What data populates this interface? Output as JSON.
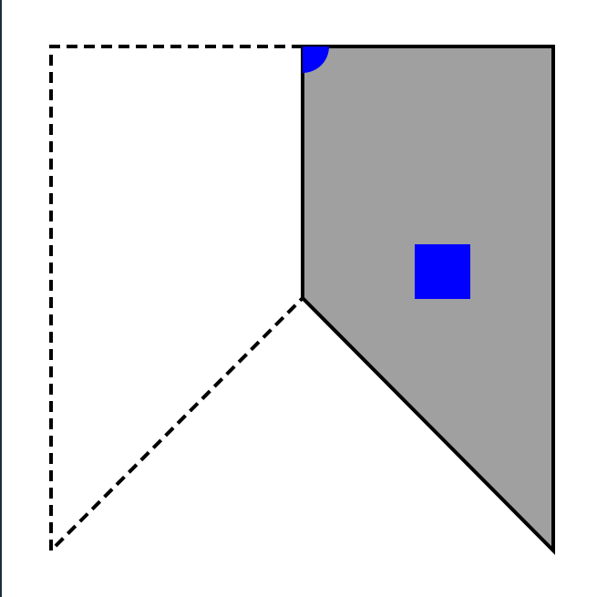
{
  "colors": {
    "background": "#ffffff",
    "frame_edge": "#1f2f3f",
    "stroke": "#000000",
    "shaded_fill": "#a0a0a0",
    "marker_fill": "#0000ff"
  },
  "figure": {
    "shaded_region": "filled",
    "mirror_region": "dashed-outline",
    "markers": [
      "quarter-circle-marker",
      "square-marker"
    ]
  }
}
